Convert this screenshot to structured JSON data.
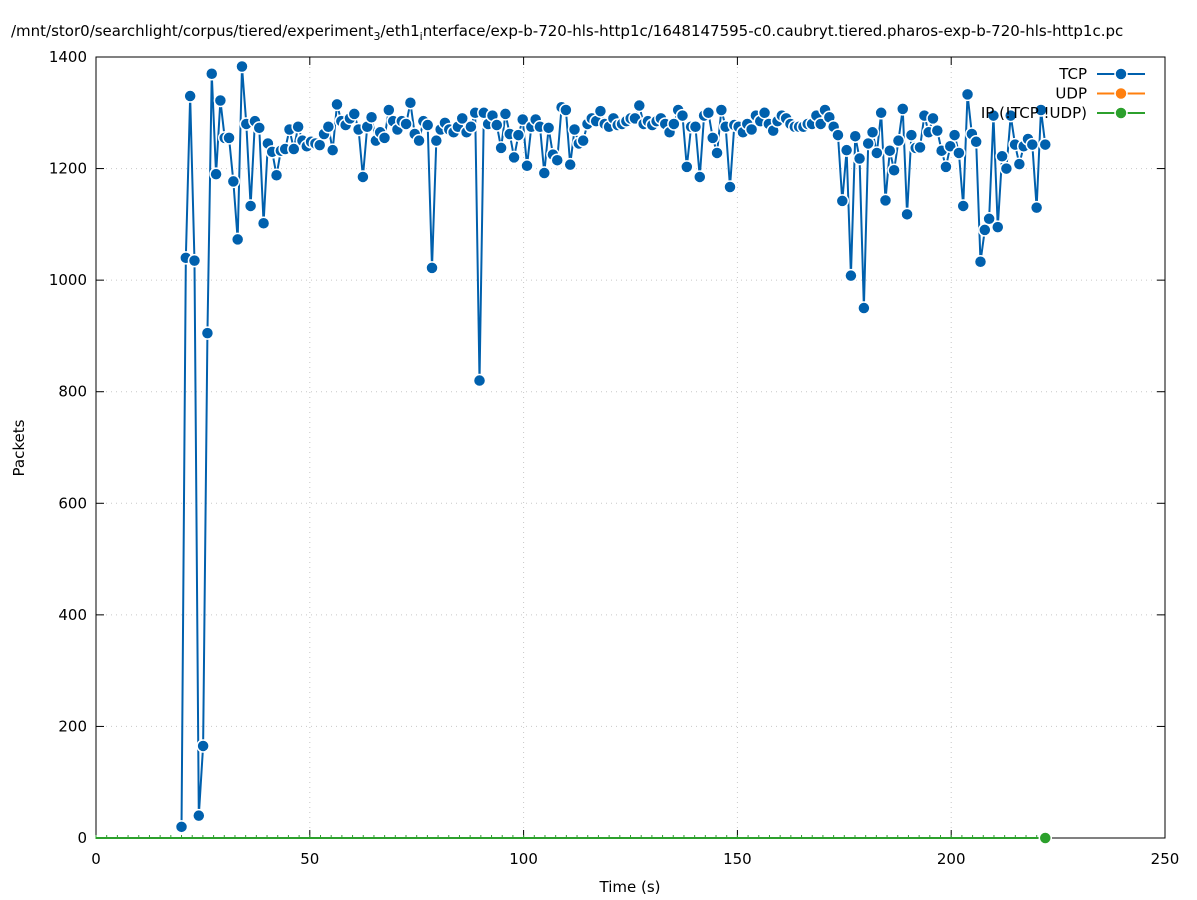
{
  "chart_data": {
    "type": "line",
    "title_parts": [
      {
        "text": "/mnt/stor0/searchlight/corpus/tiered/experiment",
        "sub": false
      },
      {
        "text": "3",
        "sub": true
      },
      {
        "text": "/eth1",
        "sub": false
      },
      {
        "text": "i",
        "sub": true
      },
      {
        "text": "nterface/exp-b-720-hls-http1c/1648147595-c0.caubryt.tiered.pharos-exp-b-720-hls-http1c.pc",
        "sub": false
      }
    ],
    "xlabel": "Time (s)",
    "ylabel": "Packets",
    "xlim": [
      0,
      250
    ],
    "ylim": [
      0,
      1400
    ],
    "xticks": [
      "0",
      "50",
      "100",
      "150",
      "200",
      "250"
    ],
    "yticks": [
      "0",
      "200",
      "400",
      "600",
      "800",
      "1000",
      "1200",
      "1400"
    ],
    "grid": true,
    "legend_position": "top-right",
    "series": [
      {
        "name": "TCP",
        "color": "#0060ad",
        "x_start": 20,
        "x_end": 222,
        "values": [
          20,
          1040,
          1330,
          1035,
          40,
          165,
          905,
          1370,
          1190,
          1322,
          1255,
          1255,
          1177,
          1073,
          1383,
          1280,
          1133,
          1285,
          1273,
          1102,
          1245,
          1230,
          1188,
          1232,
          1235,
          1270,
          1235,
          1275,
          1250,
          1240,
          1248,
          1245,
          1242,
          1262,
          1275,
          1233,
          1315,
          1285,
          1278,
          1290,
          1298,
          1270,
          1185,
          1275,
          1292,
          1250,
          1265,
          1255,
          1305,
          1285,
          1270,
          1285,
          1280,
          1318,
          1262,
          1250,
          1285,
          1278,
          1022,
          1250,
          1270,
          1282,
          1270,
          1265,
          1275,
          1290,
          1265,
          1275,
          1300,
          820,
          1300,
          1280,
          1295,
          1278,
          1237,
          1298,
          1262,
          1220,
          1260,
          1288,
          1205,
          1275,
          1288,
          1275,
          1192,
          1273,
          1225,
          1215,
          1310,
          1305,
          1207,
          1270,
          1245,
          1250,
          1280,
          1290,
          1285,
          1303,
          1280,
          1275,
          1290,
          1278,
          1280,
          1285,
          1290,
          1290,
          1313,
          1280,
          1285,
          1278,
          1285,
          1290,
          1280,
          1265,
          1280,
          1305,
          1295,
          1203,
          1275,
          1275,
          1185,
          1295,
          1300,
          1255,
          1228,
          1305,
          1275,
          1167,
          1278,
          1275,
          1265,
          1280,
          1270,
          1295,
          1285,
          1300,
          1280,
          1268,
          1285,
          1295,
          1290,
          1280,
          1275,
          1275,
          1275,
          1280,
          1280,
          1295,
          1280,
          1305,
          1292,
          1275,
          1260,
          1142,
          1233,
          1008,
          1258,
          1218,
          950,
          1245,
          1265,
          1228,
          1300,
          1143,
          1232,
          1197,
          1250,
          1307,
          1118,
          1260,
          1237,
          1238,
          1295,
          1265,
          1290,
          1268,
          1232,
          1203,
          1240,
          1260,
          1228,
          1133,
          1333,
          1262,
          1248,
          1033,
          1090,
          1110,
          1295,
          1095,
          1222,
          1200,
          1295,
          1243,
          1208,
          1240,
          1253,
          1243,
          1130,
          1305,
          1243
        ]
      },
      {
        "name": "UDP",
        "color": "#ff7f0e",
        "values": []
      },
      {
        "name": "IP (!TCP !UDP)",
        "color": "#2ca02c",
        "x_start": 0,
        "x_end": 222,
        "values": [
          0,
          0
        ]
      }
    ]
  }
}
